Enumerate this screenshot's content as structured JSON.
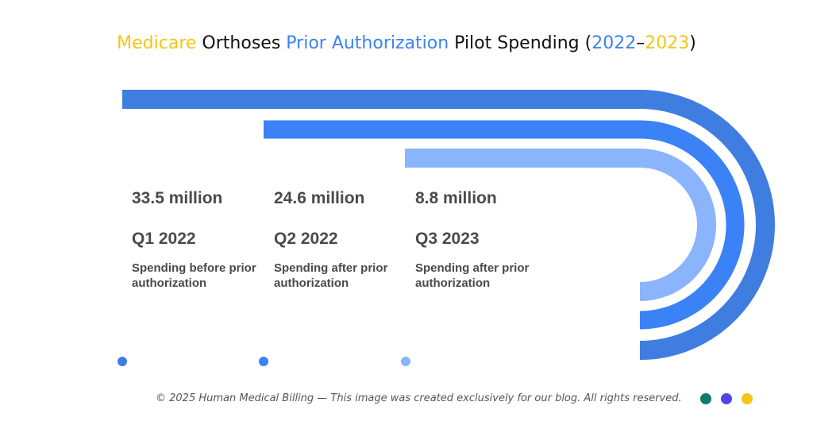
{
  "title": {
    "parts": [
      {
        "text": "Medicare",
        "color": "#f5c518"
      },
      {
        "text": " Orthoses ",
        "color": "#111111"
      },
      {
        "text": "Prior Authorization",
        "color": "#3b82f6"
      },
      {
        "text": " Pilot Spending ",
        "color": "#111111"
      },
      {
        "text": "(",
        "color": "#111111"
      },
      {
        "text": "2022",
        "color": "#3b82f6"
      },
      {
        "text": "–",
        "color": "#111111"
      },
      {
        "text": "2023",
        "color": "#f5c518"
      },
      {
        "text": ")",
        "color": "#111111"
      }
    ]
  },
  "chart_data": {
    "type": "bar",
    "title": "Medicare Orthoses Prior Authorization Pilot Spending (2022–2023)",
    "categories": [
      "Q1 2022",
      "Q2 2022",
      "Q3 2023"
    ],
    "values": [
      33.5,
      24.6,
      8.8
    ],
    "value_labels": [
      "33.5 million",
      "24.6 million",
      "8.8 million"
    ],
    "descriptions": [
      "Spending before prior authorization",
      "Spending after prior authorization",
      "Spending after prior authorization"
    ],
    "colors": [
      "#3f7de0",
      "#3b82f6",
      "#8ab4fb"
    ],
    "legend": "none",
    "grid": false
  },
  "stats": [
    {
      "value": "33.5 million",
      "period": "Q1 2022",
      "desc": "Spending before prior authorization",
      "dot_color": "#3f7de0"
    },
    {
      "value": "24.6 million",
      "period": "Q2 2022",
      "desc": "Spending after prior authorization",
      "dot_color": "#3b82f6"
    },
    {
      "value": "8.8 million",
      "period": "Q3 2023",
      "desc": "Spending after prior authorization",
      "dot_color": "#8ab4fb"
    }
  ],
  "footer": {
    "text": "© 2025 Human Medical Billing — This image was created exclusively for our blog. All rights reserved.",
    "dots": [
      "#0f7b6c",
      "#4f46e5",
      "#f5c518"
    ]
  }
}
